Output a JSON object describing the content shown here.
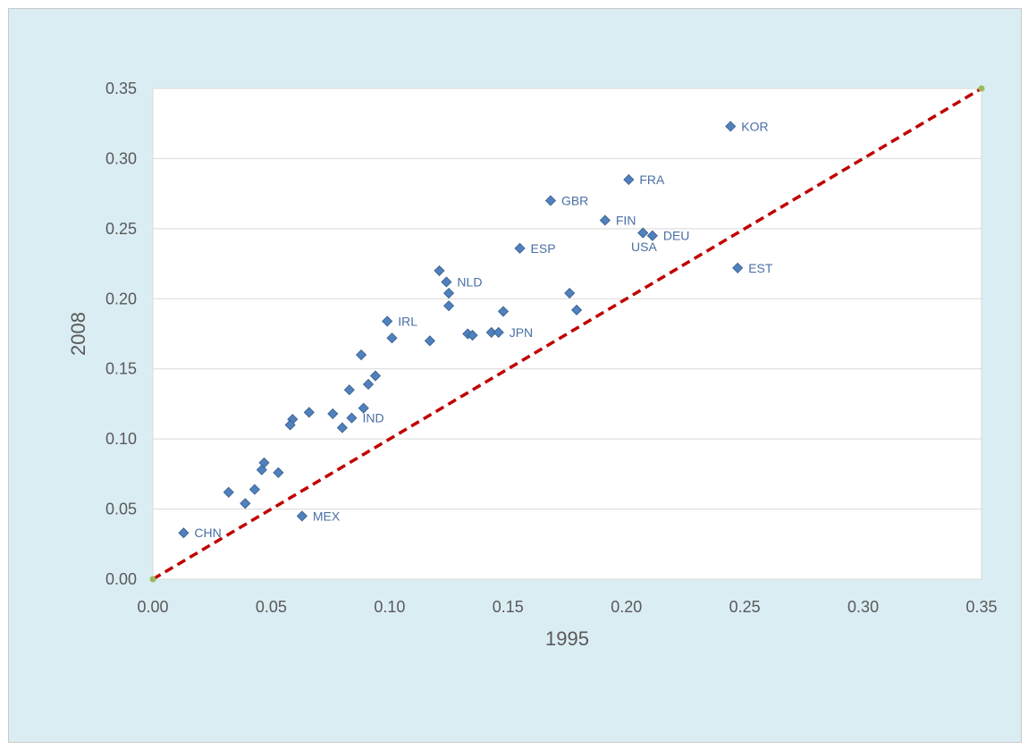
{
  "chart_data": {
    "type": "scatter",
    "title": "",
    "xlabel": "1995",
    "ylabel": "2008",
    "xlim": [
      0,
      0.35
    ],
    "ylim": [
      0,
      0.35
    ],
    "x_ticks": [
      "0.00",
      "0.05",
      "0.10",
      "0.15",
      "0.20",
      "0.25",
      "0.30",
      "0.35"
    ],
    "y_ticks": [
      "0.00",
      "0.05",
      "0.10",
      "0.15",
      "0.20",
      "0.25",
      "0.30",
      "0.35"
    ],
    "grid": "horizontal",
    "legend": "none",
    "colors": {
      "background": "#daedf3",
      "plot_area": "#ffffff",
      "marker": "#4f81bd",
      "marker_edge": "#385d8a",
      "reference_line": "#c00000",
      "reference_endpoints": "#9bbb59",
      "label": "#4a6fa5"
    },
    "reference_line": {
      "from": [
        0,
        0
      ],
      "to": [
        0.35,
        0.35
      ],
      "style": "dashed"
    },
    "points": [
      {
        "x": 0.244,
        "y": 0.323,
        "label": "KOR"
      },
      {
        "x": 0.201,
        "y": 0.285,
        "label": "FRA"
      },
      {
        "x": 0.168,
        "y": 0.27,
        "label": "GBR"
      },
      {
        "x": 0.191,
        "y": 0.256,
        "label": "FIN"
      },
      {
        "x": 0.207,
        "y": 0.247,
        "label": ""
      },
      {
        "x": 0.211,
        "y": 0.245,
        "label": "DEU"
      },
      {
        "x": 0.155,
        "y": 0.236,
        "label": "ESP"
      },
      {
        "x": 0.247,
        "y": 0.222,
        "label": "EST"
      },
      {
        "x": 0.121,
        "y": 0.22,
        "label": ""
      },
      {
        "x": 0.124,
        "y": 0.212,
        "label": "NLD"
      },
      {
        "x": 0.125,
        "y": 0.204,
        "label": ""
      },
      {
        "x": 0.176,
        "y": 0.204,
        "label": ""
      },
      {
        "x": 0.125,
        "y": 0.195,
        "label": ""
      },
      {
        "x": 0.148,
        "y": 0.191,
        "label": ""
      },
      {
        "x": 0.179,
        "y": 0.192,
        "label": ""
      },
      {
        "x": 0.099,
        "y": 0.184,
        "label": "IRL"
      },
      {
        "x": 0.133,
        "y": 0.175,
        "label": ""
      },
      {
        "x": 0.135,
        "y": 0.174,
        "label": ""
      },
      {
        "x": 0.143,
        "y": 0.176,
        "label": ""
      },
      {
        "x": 0.146,
        "y": 0.176,
        "label": "JPN"
      },
      {
        "x": 0.101,
        "y": 0.172,
        "label": ""
      },
      {
        "x": 0.117,
        "y": 0.17,
        "label": ""
      },
      {
        "x": 0.088,
        "y": 0.16,
        "label": ""
      },
      {
        "x": 0.094,
        "y": 0.145,
        "label": ""
      },
      {
        "x": 0.091,
        "y": 0.139,
        "label": ""
      },
      {
        "x": 0.083,
        "y": 0.135,
        "label": ""
      },
      {
        "x": 0.089,
        "y": 0.122,
        "label": ""
      },
      {
        "x": 0.066,
        "y": 0.119,
        "label": ""
      },
      {
        "x": 0.076,
        "y": 0.118,
        "label": ""
      },
      {
        "x": 0.084,
        "y": 0.115,
        "label": "IND"
      },
      {
        "x": 0.059,
        "y": 0.114,
        "label": ""
      },
      {
        "x": 0.058,
        "y": 0.11,
        "label": ""
      },
      {
        "x": 0.08,
        "y": 0.108,
        "label": ""
      },
      {
        "x": 0.047,
        "y": 0.083,
        "label": ""
      },
      {
        "x": 0.046,
        "y": 0.078,
        "label": ""
      },
      {
        "x": 0.053,
        "y": 0.076,
        "label": ""
      },
      {
        "x": 0.043,
        "y": 0.064,
        "label": ""
      },
      {
        "x": 0.032,
        "y": 0.062,
        "label": ""
      },
      {
        "x": 0.039,
        "y": 0.054,
        "label": ""
      },
      {
        "x": 0.063,
        "y": 0.045,
        "label": "MEX"
      },
      {
        "x": 0.013,
        "y": 0.033,
        "label": "CHN"
      }
    ],
    "annotations": [
      {
        "x": 0.202,
        "y": 0.237,
        "text": "USA"
      }
    ]
  }
}
